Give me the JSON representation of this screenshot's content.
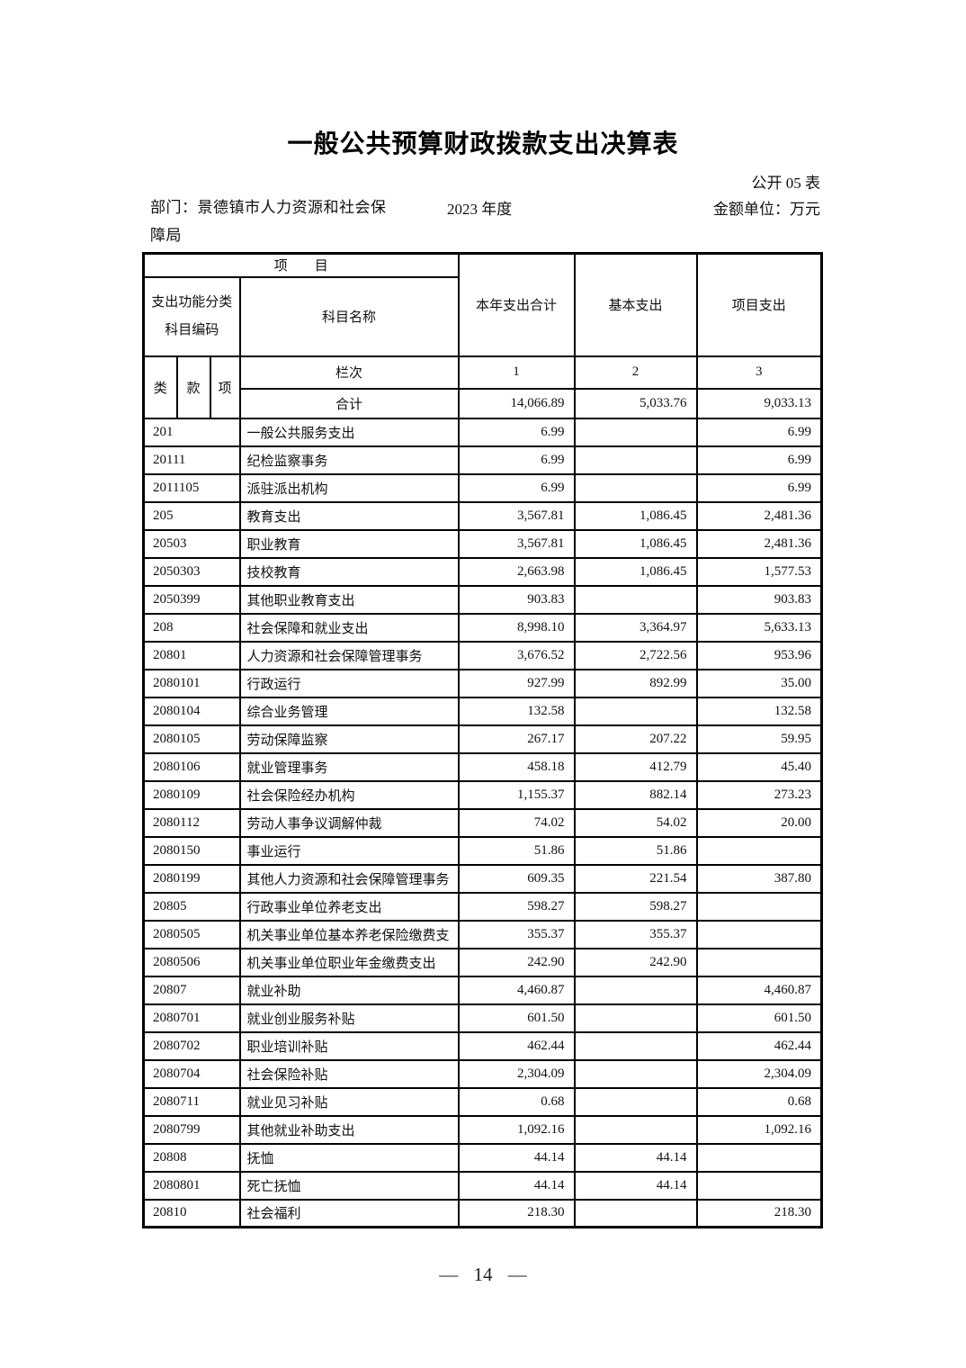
{
  "page": {
    "title": "一般公共预算财政拨款支出决算表",
    "table_code": "公开 05 表",
    "department": "部门：景德镇市人力资源和社会保障局",
    "year": "2023 年度",
    "unit": "金额单位：万元",
    "page_number": "— 14 —"
  },
  "table": {
    "header": {
      "project_label": "项　　目",
      "code_label_line1": "支出功能分类",
      "code_label_line2": "科目编码",
      "subject_name": "科目名称",
      "col_total": "本年支出合计",
      "col_basic": "基本支出",
      "col_project": "项目支出",
      "col_class": "类",
      "col_section": "款",
      "col_item": "项",
      "row_index_label": "栏次",
      "col_index": [
        "1",
        "2",
        "3"
      ],
      "total_label": "合计"
    },
    "total_row": {
      "total": "14,066.89",
      "basic": "5,033.76",
      "project": "9,033.13"
    },
    "rows": [
      {
        "code": "201",
        "name": "一般公共服务支出",
        "total": "6.99",
        "basic": "",
        "project": "6.99"
      },
      {
        "code": "20111",
        "name": "纪检监察事务",
        "total": "6.99",
        "basic": "",
        "project": "6.99"
      },
      {
        "code": "2011105",
        "name": "派驻派出机构",
        "total": "6.99",
        "basic": "",
        "project": "6.99"
      },
      {
        "code": "205",
        "name": "教育支出",
        "total": "3,567.81",
        "basic": "1,086.45",
        "project": "2,481.36"
      },
      {
        "code": "20503",
        "name": "职业教育",
        "total": "3,567.81",
        "basic": "1,086.45",
        "project": "2,481.36"
      },
      {
        "code": "2050303",
        "name": "技校教育",
        "total": "2,663.98",
        "basic": "1,086.45",
        "project": "1,577.53"
      },
      {
        "code": "2050399",
        "name": "其他职业教育支出",
        "total": "903.83",
        "basic": "",
        "project": "903.83"
      },
      {
        "code": "208",
        "name": "社会保障和就业支出",
        "total": "8,998.10",
        "basic": "3,364.97",
        "project": "5,633.13"
      },
      {
        "code": "20801",
        "name": "人力资源和社会保障管理事务",
        "total": "3,676.52",
        "basic": "2,722.56",
        "project": "953.96"
      },
      {
        "code": "2080101",
        "name": "行政运行",
        "total": "927.99",
        "basic": "892.99",
        "project": "35.00"
      },
      {
        "code": "2080104",
        "name": "综合业务管理",
        "total": "132.58",
        "basic": "",
        "project": "132.58"
      },
      {
        "code": "2080105",
        "name": "劳动保障监察",
        "total": "267.17",
        "basic": "207.22",
        "project": "59.95"
      },
      {
        "code": "2080106",
        "name": "就业管理事务",
        "total": "458.18",
        "basic": "412.79",
        "project": "45.40"
      },
      {
        "code": "2080109",
        "name": "社会保险经办机构",
        "total": "1,155.37",
        "basic": "882.14",
        "project": "273.23"
      },
      {
        "code": "2080112",
        "name": "劳动人事争议调解仲裁",
        "total": "74.02",
        "basic": "54.02",
        "project": "20.00"
      },
      {
        "code": "2080150",
        "name": "事业运行",
        "total": "51.86",
        "basic": "51.86",
        "project": ""
      },
      {
        "code": "2080199",
        "name": "其他人力资源和社会保障管理事务",
        "total": "609.35",
        "basic": "221.54",
        "project": "387.80"
      },
      {
        "code": "20805",
        "name": "行政事业单位养老支出",
        "total": "598.27",
        "basic": "598.27",
        "project": ""
      },
      {
        "code": "2080505",
        "name": "机关事业单位基本养老保险缴费支",
        "total": "355.37",
        "basic": "355.37",
        "project": ""
      },
      {
        "code": "2080506",
        "name": "机关事业单位职业年金缴费支出",
        "total": "242.90",
        "basic": "242.90",
        "project": ""
      },
      {
        "code": "20807",
        "name": "就业补助",
        "total": "4,460.87",
        "basic": "",
        "project": "4,460.87"
      },
      {
        "code": "2080701",
        "name": "就业创业服务补贴",
        "total": "601.50",
        "basic": "",
        "project": "601.50"
      },
      {
        "code": "2080702",
        "name": "职业培训补贴",
        "total": "462.44",
        "basic": "",
        "project": "462.44"
      },
      {
        "code": "2080704",
        "name": "社会保险补贴",
        "total": "2,304.09",
        "basic": "",
        "project": "2,304.09"
      },
      {
        "code": "2080711",
        "name": "就业见习补贴",
        "total": "0.68",
        "basic": "",
        "project": "0.68"
      },
      {
        "code": "2080799",
        "name": "其他就业补助支出",
        "total": "1,092.16",
        "basic": "",
        "project": "1,092.16"
      },
      {
        "code": "20808",
        "name": "抚恤",
        "total": "44.14",
        "basic": "44.14",
        "project": ""
      },
      {
        "code": "2080801",
        "name": "死亡抚恤",
        "total": "44.14",
        "basic": "44.14",
        "project": ""
      },
      {
        "code": "20810",
        "name": "社会福利",
        "total": "218.30",
        "basic": "",
        "project": "218.30"
      }
    ]
  }
}
